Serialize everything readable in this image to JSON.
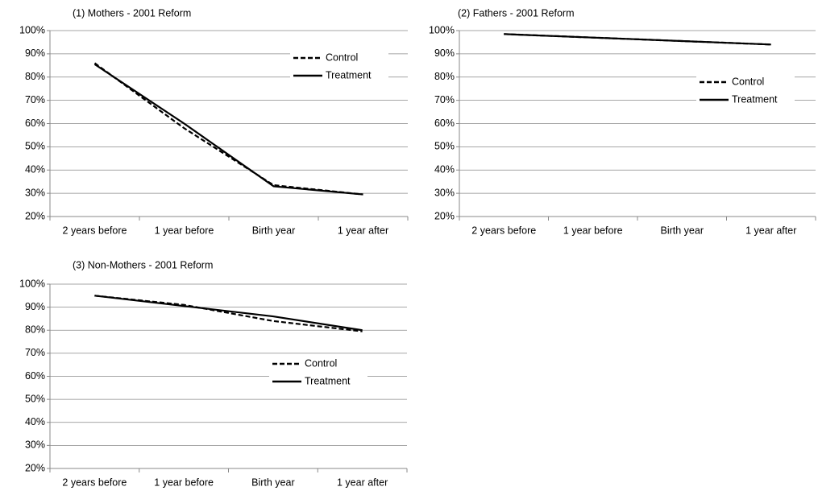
{
  "chart_data": [
    {
      "type": "line",
      "title": "(1) Mothers - 2001 Reform",
      "categories": [
        "2 years before",
        "1 year before",
        "Birth year",
        "1 year after"
      ],
      "series": [
        {
          "name": "Control",
          "color": "#000000",
          "linestyle": "dashed",
          "values": [
            86,
            58,
            33.5,
            29.5
          ]
        },
        {
          "name": "Treatment",
          "color": "#000000",
          "linestyle": "solid",
          "values": [
            85.5,
            60,
            33,
            29.5
          ]
        }
      ],
      "ylim": [
        20,
        100
      ],
      "yticks": [
        {
          "value": 20,
          "label": "20%"
        },
        {
          "value": 30,
          "label": "30%"
        },
        {
          "value": 40,
          "label": "40%"
        },
        {
          "value": 50,
          "label": "50%"
        },
        {
          "value": 60,
          "label": "60%"
        },
        {
          "value": 70,
          "label": "70%"
        },
        {
          "value": 80,
          "label": "80%"
        },
        {
          "value": 90,
          "label": "90%"
        },
        {
          "value": 100,
          "label": "100%"
        }
      ],
      "grid": true
    },
    {
      "type": "line",
      "title": "(2) Fathers - 2001 Reform",
      "categories": [
        "2 years before",
        "1 year before",
        "Birth year",
        "1 year after"
      ],
      "series": [
        {
          "name": "Control",
          "color": "#000000",
          "linestyle": "dashed",
          "values": [
            98.5,
            97,
            95.5,
            94
          ]
        },
        {
          "name": "Treatment",
          "color": "#000000",
          "linestyle": "solid",
          "values": [
            98.5,
            97,
            95.5,
            94
          ]
        }
      ],
      "ylim": [
        20,
        100
      ],
      "yticks": [
        {
          "value": 20,
          "label": "20%"
        },
        {
          "value": 30,
          "label": "30%"
        },
        {
          "value": 40,
          "label": "40%"
        },
        {
          "value": 50,
          "label": "50%"
        },
        {
          "value": 60,
          "label": "60%"
        },
        {
          "value": 70,
          "label": "70%"
        },
        {
          "value": 80,
          "label": "80%"
        },
        {
          "value": 90,
          "label": "90%"
        },
        {
          "value": 100,
          "label": "100%"
        }
      ],
      "grid": true
    },
    {
      "type": "line",
      "title": "(3) Non-Mothers - 2001 Reform",
      "categories": [
        "2 years before",
        "1 year before",
        "Birth year",
        "1 year after"
      ],
      "series": [
        {
          "name": "Control",
          "color": "#000000",
          "linestyle": "dashed",
          "values": [
            95,
            91,
            84,
            79.5
          ]
        },
        {
          "name": "Treatment",
          "color": "#000000",
          "linestyle": "solid",
          "values": [
            95,
            90.5,
            86,
            80
          ]
        }
      ],
      "ylim": [
        20,
        100
      ],
      "yticks": [
        {
          "value": 20,
          "label": "20%"
        },
        {
          "value": 30,
          "label": "30%"
        },
        {
          "value": 40,
          "label": "40%"
        },
        {
          "value": 50,
          "label": "50%"
        },
        {
          "value": 60,
          "label": "60%"
        },
        {
          "value": 70,
          "label": "70%"
        },
        {
          "value": 80,
          "label": "80%"
        },
        {
          "value": 90,
          "label": "90%"
        },
        {
          "value": 100,
          "label": "100%"
        }
      ],
      "grid": true
    }
  ]
}
